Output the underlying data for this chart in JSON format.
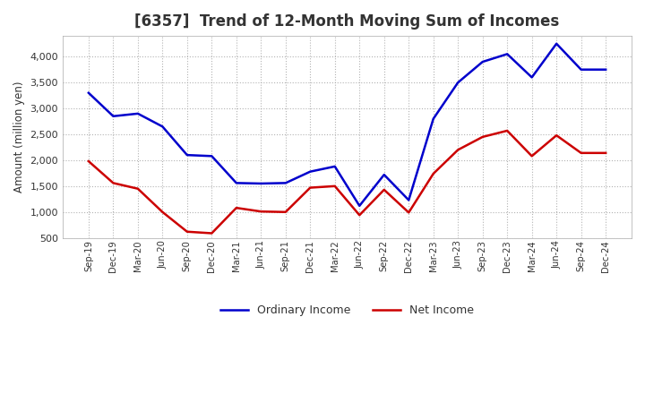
{
  "title": "[6357]  Trend of 12-Month Moving Sum of Incomes",
  "ylabel": "Amount (million yen)",
  "background_color": "#ffffff",
  "plot_background": "#ffffff",
  "grid_color": "#aaaaaa",
  "x_labels": [
    "Sep-19",
    "Dec-19",
    "Mar-20",
    "Jun-20",
    "Sep-20",
    "Dec-20",
    "Mar-21",
    "Jun-21",
    "Sep-21",
    "Dec-21",
    "Mar-22",
    "Jun-22",
    "Sep-22",
    "Dec-22",
    "Mar-23",
    "Jun-23",
    "Sep-23",
    "Dec-23",
    "Mar-24",
    "Jun-24",
    "Sep-24",
    "Dec-24"
  ],
  "ordinary_income": [
    3300,
    2850,
    2900,
    2650,
    2100,
    2080,
    1560,
    1550,
    1560,
    1780,
    1880,
    1120,
    1720,
    1230,
    2800,
    3500,
    3900,
    4050,
    3600,
    4250,
    3750,
    3750
  ],
  "net_income": [
    1980,
    1560,
    1450,
    1000,
    620,
    590,
    1080,
    1010,
    1000,
    1470,
    1500,
    940,
    1430,
    990,
    1740,
    2200,
    2450,
    2570,
    2080,
    2480,
    2140,
    2140
  ],
  "ordinary_color": "#0000cc",
  "net_color": "#cc0000",
  "ylim": [
    500,
    4400
  ],
  "yticks": [
    500,
    1000,
    1500,
    2000,
    2500,
    3000,
    3500,
    4000
  ],
  "line_width": 1.8,
  "legend_ordinary": "Ordinary Income",
  "legend_net": "Net Income",
  "title_fontsize": 12,
  "title_color": "#333333",
  "tick_label_color": "#333333",
  "axis_label_color": "#333333"
}
